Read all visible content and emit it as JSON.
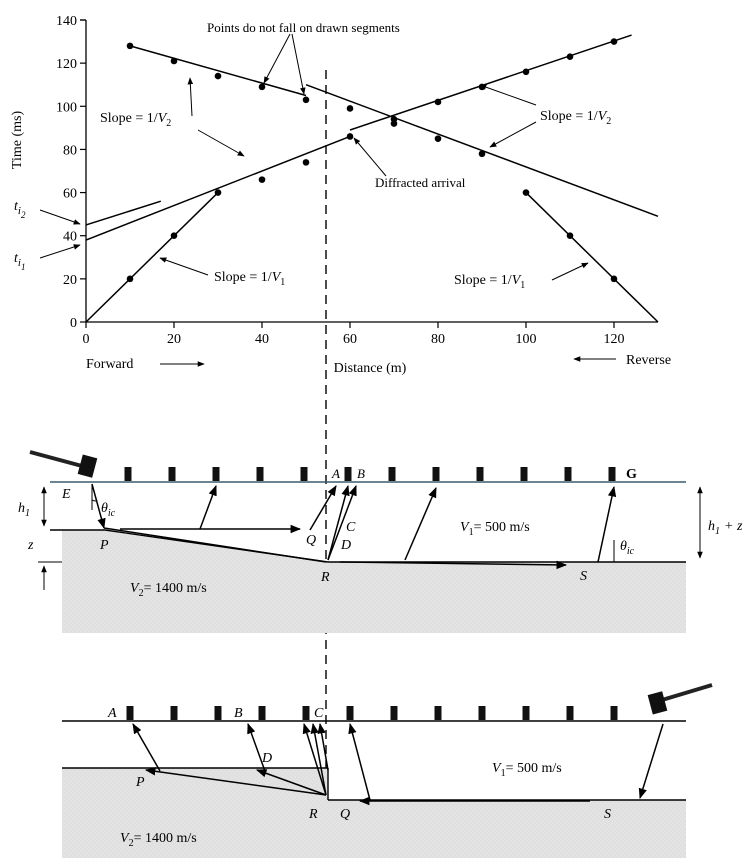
{
  "chart_data": {
    "type": "scatter",
    "title": "",
    "xlabel": "Distance (m)",
    "ylabel": "Time (ms)",
    "xlim": [
      0,
      130
    ],
    "ylim": [
      0,
      140
    ],
    "x_ticks": [
      0,
      20,
      40,
      60,
      80,
      100,
      120
    ],
    "y_ticks": [
      0,
      20,
      40,
      60,
      80,
      100,
      120,
      140
    ],
    "grid": false,
    "points": [
      {
        "x": 10,
        "y": 20
      },
      {
        "x": 20,
        "y": 40
      },
      {
        "x": 30,
        "y": 60
      },
      {
        "x": 40,
        "y": 66
      },
      {
        "x": 50,
        "y": 74
      },
      {
        "x": 60,
        "y": 86
      },
      {
        "x": 70,
        "y": 94
      },
      {
        "x": 80,
        "y": 102
      },
      {
        "x": 90,
        "y": 109
      },
      {
        "x": 100,
        "y": 116
      },
      {
        "x": 110,
        "y": 123
      },
      {
        "x": 120,
        "y": 130
      },
      {
        "x": 10,
        "y": 128
      },
      {
        "x": 20,
        "y": 121
      },
      {
        "x": 30,
        "y": 114
      },
      {
        "x": 40,
        "y": 109
      },
      {
        "x": 50,
        "y": 103
      },
      {
        "x": 60,
        "y": 99
      },
      {
        "x": 70,
        "y": 92
      },
      {
        "x": 80,
        "y": 85
      },
      {
        "x": 90,
        "y": 78
      },
      {
        "x": 100,
        "y": 60
      },
      {
        "x": 110,
        "y": 40
      },
      {
        "x": 120,
        "y": 20
      }
    ],
    "lines": [
      {
        "from": [
          0,
          0
        ],
        "to": [
          30,
          60
        ]
      },
      {
        "from": [
          0,
          38
        ],
        "to": [
          60,
          86
        ]
      },
      {
        "from": [
          60,
          89
        ],
        "to": [
          124,
          133
        ]
      },
      {
        "from": [
          0,
          45
        ],
        "to": [
          17,
          56
        ]
      },
      {
        "from": [
          10,
          128
        ],
        "to": [
          50,
          105
        ]
      },
      {
        "from": [
          50,
          110
        ],
        "to": [
          130,
          49
        ]
      },
      {
        "from": [
          100,
          60
        ],
        "to": [
          130,
          0
        ]
      }
    ],
    "annotations": [
      "Points do not fall on drawn segments",
      "Slope = 1/V2",
      "Slope = 1/V2",
      "Diffracted arrival",
      "Slope = 1/V1",
      "Slope = 1/V1"
    ],
    "intercept_labels": [
      "ti2",
      "ti1"
    ],
    "direction_labels": [
      "Forward",
      "Reverse"
    ]
  },
  "plot": {
    "title_annotation": "Points do not fall on drawn segments",
    "diffracted_label": "Diffracted arrival",
    "slope_prefix": "Slope = 1/",
    "v_letter": "V",
    "sub_one": "1",
    "sub_two": "2",
    "t_letter": "t",
    "i_letter": "i",
    "forward_label": "Forward",
    "reverse_label": "Reverse"
  },
  "diagram1": {
    "labels": {
      "E": "E",
      "P": "P",
      "Q": "Q",
      "R": "R",
      "S": "S",
      "A": "A",
      "B": "B",
      "C": "C",
      "D": "D",
      "G": "G",
      "h": "h",
      "h_sub": "1",
      "z": "z",
      "plus_z": "+ z",
      "theta": "θ",
      "theta_sub": "ic"
    },
    "v1_text": "= 500 m/s",
    "v2_text": "= 1400 m/s"
  },
  "diagram2": {
    "labels": {
      "A": "A",
      "B": "B",
      "C": "C",
      "D": "D",
      "P": "P",
      "R": "R",
      "Q": "Q",
      "S": "S"
    },
    "v1_text": "= 500 m/s",
    "v2_text": "= 1400 m/s"
  },
  "colors": {
    "ink": "#000000",
    "bedrock_fill": "#e3e3e3",
    "surface_line": "#3d5c6e"
  }
}
